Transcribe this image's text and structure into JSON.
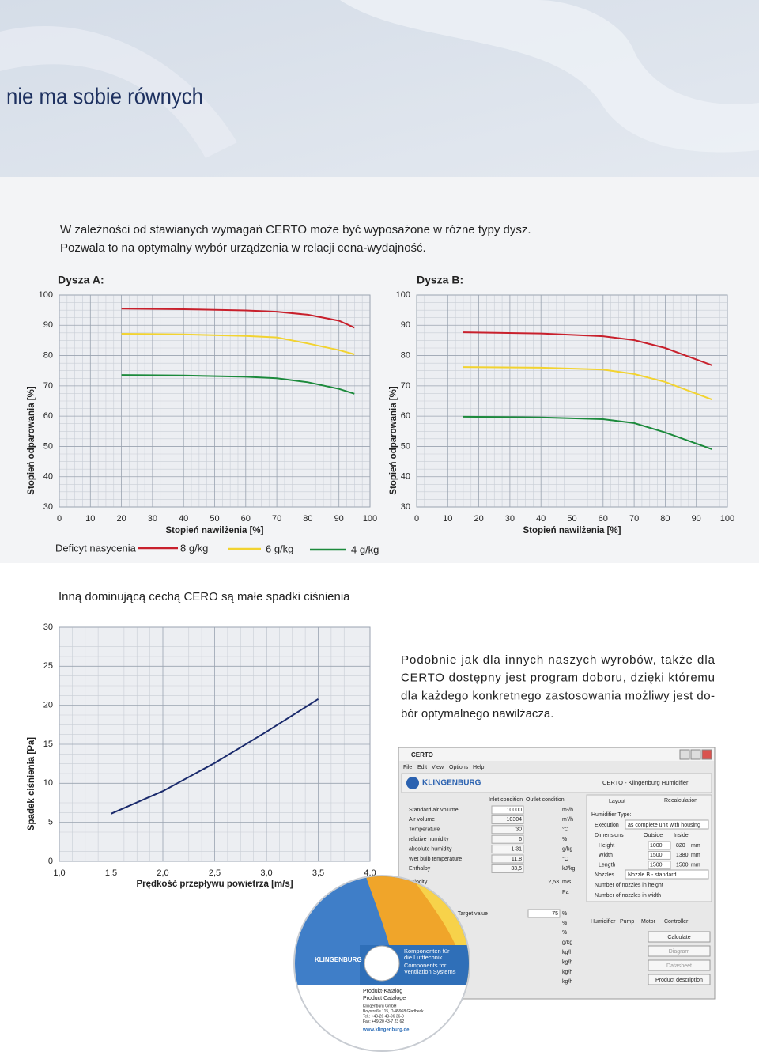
{
  "header": {
    "title": "nie ma sobie równych"
  },
  "intro": [
    "W zależności od stawianych wymagań CERTO może być wyposażone w różne typy dysz.",
    "Pozwala to na optymalny wybór urządzenia w relacji cena-wydajność."
  ],
  "chart_data": [
    {
      "type": "line",
      "title": "Dysza A:",
      "xlabel": "Stopień nawilżenia [%]",
      "ylabel": "Stopień odparowania [%]",
      "x": [
        20,
        40,
        60,
        70,
        80,
        90,
        95
      ],
      "series": [
        {
          "name": "8 g/kg",
          "color": "#c8202c",
          "values": [
            95.5,
            95.3,
            94.9,
            94.5,
            93.5,
            91.5,
            89.2
          ]
        },
        {
          "name": "6 g/kg",
          "color": "#f2d330",
          "values": [
            87.2,
            87,
            86.5,
            86,
            84,
            81.8,
            80.4
          ]
        },
        {
          "name": "4 g/kg",
          "color": "#1c8a3c",
          "values": [
            73.6,
            73.4,
            73,
            72.5,
            71.2,
            69,
            67.4
          ]
        }
      ],
      "xlim": [
        0,
        100
      ],
      "xticks": [
        0,
        10,
        20,
        30,
        40,
        50,
        60,
        70,
        80,
        90,
        100
      ],
      "ylim": [
        30,
        100
      ],
      "yticks": [
        30,
        40,
        50,
        60,
        70,
        80,
        90,
        100
      ],
      "grid": true
    },
    {
      "type": "line",
      "title": "Dysza B:",
      "xlabel": "Stopień nawilżenia [%]",
      "ylabel": "Stopień odparowania [%]",
      "x": [
        15,
        40,
        60,
        70,
        80,
        95
      ],
      "series": [
        {
          "name": "8 g/kg",
          "color": "#c8202c",
          "values": [
            87.7,
            87.3,
            86.4,
            85.1,
            82.5,
            76.8
          ]
        },
        {
          "name": "6 g/kg",
          "color": "#f2d330",
          "values": [
            76.2,
            76,
            75.4,
            73.9,
            71.3,
            65.5
          ]
        },
        {
          "name": "4 g/kg",
          "color": "#1c8a3c",
          "values": [
            59.8,
            59.6,
            59,
            57.7,
            54.6,
            49.1
          ]
        }
      ],
      "xlim": [
        0,
        100
      ],
      "xticks": [
        0,
        10,
        20,
        30,
        40,
        50,
        60,
        70,
        80,
        90,
        100
      ],
      "ylim": [
        30,
        100
      ],
      "yticks": [
        30,
        40,
        50,
        60,
        70,
        80,
        90,
        100
      ],
      "grid": true
    },
    {
      "type": "line",
      "xlabel": "Prędkość przepływu powietrza [m/s]",
      "ylabel": "Spadek ciśnienia [Pa]",
      "x": [
        1.5,
        2,
        2.5,
        3,
        3.5
      ],
      "series": [
        {
          "color": "#1a2a6c",
          "values": [
            6.1,
            9,
            12.6,
            16.6,
            20.8
          ]
        }
      ],
      "xlim": [
        1,
        4
      ],
      "xticks": [
        {
          "value": 1,
          "label": "1,0"
        },
        {
          "value": 1.5,
          "label": "1,5"
        },
        {
          "value": 2,
          "label": "2,0"
        },
        {
          "value": 2.5,
          "label": "2,5"
        },
        {
          "value": 3,
          "label": "3,0"
        },
        {
          "value": 3.5,
          "label": "3,5"
        },
        {
          "value": 4,
          "label": "4,0"
        }
      ],
      "ylim": [
        0,
        30
      ],
      "yticks": [
        0,
        5,
        10,
        15,
        20,
        25,
        30
      ],
      "grid": true
    }
  ],
  "legend": {
    "label": "Deficyt nasycenia"
  },
  "section2": {
    "heading": "Inną dominującą cechą CERO są małe spadki ciśnienia",
    "paragraph": [
      "Podobnie jak dla innych naszych wyrobów, także dla",
      "CERTO dostępny jest program doboru, dzięki któremu",
      "dla każdego konkretnego zastosowania możliwy jest do-",
      "bór optymalnego nawilżacza."
    ]
  },
  "software": {
    "app": "CERTO",
    "menu": [
      "File",
      "Edit",
      "View",
      "Options",
      "Help"
    ],
    "brand": "KLINGENBURG",
    "window_title": "CERTO - Klingenburg Humidifier",
    "tabs": [
      "Inlet condition",
      "Outlet condition"
    ],
    "rows": [
      [
        "Standard air volume",
        "10000",
        "m³/h"
      ],
      [
        "Air volume",
        "10304",
        "m³/h"
      ],
      [
        "Temperature",
        "30",
        "°C"
      ],
      [
        "relative humidity",
        "6",
        "%"
      ],
      [
        "absolute humidity",
        "1,31",
        "g/kg"
      ],
      [
        "Wet bulb temperature",
        "11,8",
        "°C"
      ],
      [
        "Enthalpy",
        "33,5",
        "kJ/kg"
      ]
    ],
    "velocity": [
      "velocity",
      "2,53",
      "m/s"
    ],
    "pa": "Pa",
    "target": [
      ", Target value",
      "75",
      "%"
    ],
    "units": [
      "%",
      "%",
      "g/kg",
      "kg/h",
      "kg/h",
      "kg/h",
      "kg/h"
    ],
    "right": {
      "layout": "Layout",
      "recalc": "Recalculation",
      "type": "Humidifier Type:",
      "execution": "Execution",
      "execution_value": "as complete unit with housing",
      "dimensions": "Dimensions",
      "outside": "Outside",
      "inside": "Inside",
      "dims": [
        [
          "Height",
          "1000",
          "820",
          "mm"
        ],
        [
          "Width",
          "1500",
          "1380",
          "mm"
        ],
        [
          "Length",
          "1500",
          "1500",
          "mm"
        ]
      ],
      "nozzles": "Nozzles",
      "nozzle_value": "Nozzle B - standard",
      "n_height": "Number of nozzles in height",
      "n_width": "Number of nozzles in width"
    },
    "tabs2": [
      "Humidifier",
      "Pump",
      "Motor",
      "Controller"
    ],
    "buttons": [
      "Calculate",
      "Diagram",
      "Datasheet",
      "Product description"
    ]
  },
  "disc": {
    "brand": "KLINGENBURG",
    "de": [
      "Komponenten für",
      "die Lufttechnik"
    ],
    "en": [
      "Components for",
      "Ventilation Systems"
    ],
    "catalog": [
      "Produkt-Katalog",
      "Product Cataloge"
    ],
    "address": [
      "Klingenburg GmbH",
      "Boystraße 115, D-45968 Gladbeck",
      "Tel.: +49-20 43-96 36-0",
      "Fax: +49-20 43-7 23 62"
    ],
    "web": "www.klingenburg.de"
  }
}
